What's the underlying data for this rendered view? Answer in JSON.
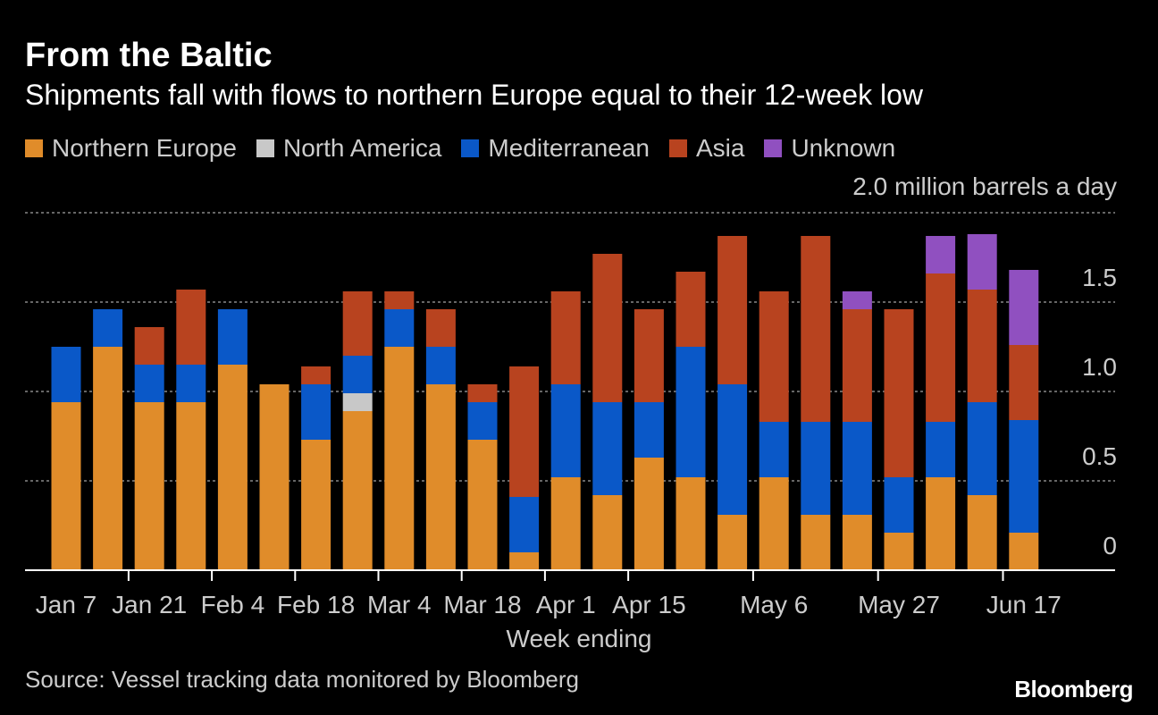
{
  "header": {
    "title": "From the Baltic",
    "subtitle": "Shipments fall with flows to northern Europe equal to their 12-week low"
  },
  "source": "Source: Vessel tracking data monitored by Bloomberg",
  "brand": "Bloomberg",
  "colors": {
    "background": "#000000",
    "gridline": "#888888",
    "axis": "#ffffff",
    "text": "#cccccc"
  },
  "chart_data": {
    "type": "bar",
    "stacked": true,
    "unit_label": "2.0 million barrels a day",
    "xlabel": "Week ending",
    "ylim": [
      0,
      2.0
    ],
    "y_ticks": [
      {
        "value": 0,
        "label": "0"
      },
      {
        "value": 0.5,
        "label": "0.5"
      },
      {
        "value": 1.0,
        "label": "1.0"
      },
      {
        "value": 1.5,
        "label": "1.5"
      },
      {
        "value": 2.0,
        "label": ""
      }
    ],
    "x_tick_labels": [
      {
        "index": 0,
        "label": "Jan 7"
      },
      {
        "index": 2,
        "label": "Jan 21"
      },
      {
        "index": 4,
        "label": "Feb 4"
      },
      {
        "index": 6,
        "label": "Feb 18"
      },
      {
        "index": 8,
        "label": "Mar 4"
      },
      {
        "index": 10,
        "label": "Mar 18"
      },
      {
        "index": 12,
        "label": "Apr 1"
      },
      {
        "index": 14,
        "label": "Apr 15"
      },
      {
        "index": 17,
        "label": "May 6"
      },
      {
        "index": 20,
        "label": "May 27"
      },
      {
        "index": 23,
        "label": "Jun 17"
      }
    ],
    "x_tick_marks": [
      2,
      4,
      6,
      8,
      10,
      12,
      14,
      17,
      20,
      23
    ],
    "grid": true,
    "legend_position": "top-left",
    "series": [
      {
        "name": "Northern Europe",
        "color": "#e08c2a",
        "values": [
          0.94,
          1.25,
          0.94,
          0.94,
          1.15,
          1.04,
          0.73,
          0.89,
          1.25,
          1.04,
          0.73,
          0.1,
          0.52,
          0.42,
          0.63,
          0.52,
          0.31,
          0.52,
          0.31,
          0.31,
          0.21,
          0.52,
          0.42,
          0.21
        ]
      },
      {
        "name": "North America",
        "color": "#c8c8c8",
        "values": [
          0,
          0,
          0,
          0,
          0,
          0,
          0,
          0.1,
          0,
          0,
          0,
          0,
          0,
          0,
          0,
          0,
          0,
          0,
          0,
          0,
          0,
          0,
          0,
          0
        ]
      },
      {
        "name": "Mediterranean",
        "color": "#0a58c8",
        "values": [
          0.31,
          0.21,
          0.21,
          0.21,
          0.31,
          0,
          0.31,
          0.21,
          0.21,
          0.21,
          0.21,
          0.31,
          0.52,
          0.52,
          0.31,
          0.73,
          0.73,
          0.31,
          0.52,
          0.52,
          0.31,
          0.31,
          0.52,
          0.63
        ]
      },
      {
        "name": "Asia",
        "color": "#b8431f",
        "values": [
          0,
          0,
          0.21,
          0.42,
          0,
          0,
          0.1,
          0.36,
          0.1,
          0.21,
          0.1,
          0.73,
          0.52,
          0.83,
          0.52,
          0.42,
          0.83,
          0.73,
          1.04,
          0.63,
          0.94,
          0.83,
          0.63,
          0.42
        ]
      },
      {
        "name": "Unknown",
        "color": "#9050c0",
        "values": [
          0,
          0,
          0,
          0,
          0,
          0,
          0,
          0,
          0,
          0,
          0,
          0,
          0,
          0,
          0,
          0,
          0,
          0,
          0,
          0.1,
          0,
          0.21,
          0.31,
          0.42
        ]
      }
    ]
  }
}
